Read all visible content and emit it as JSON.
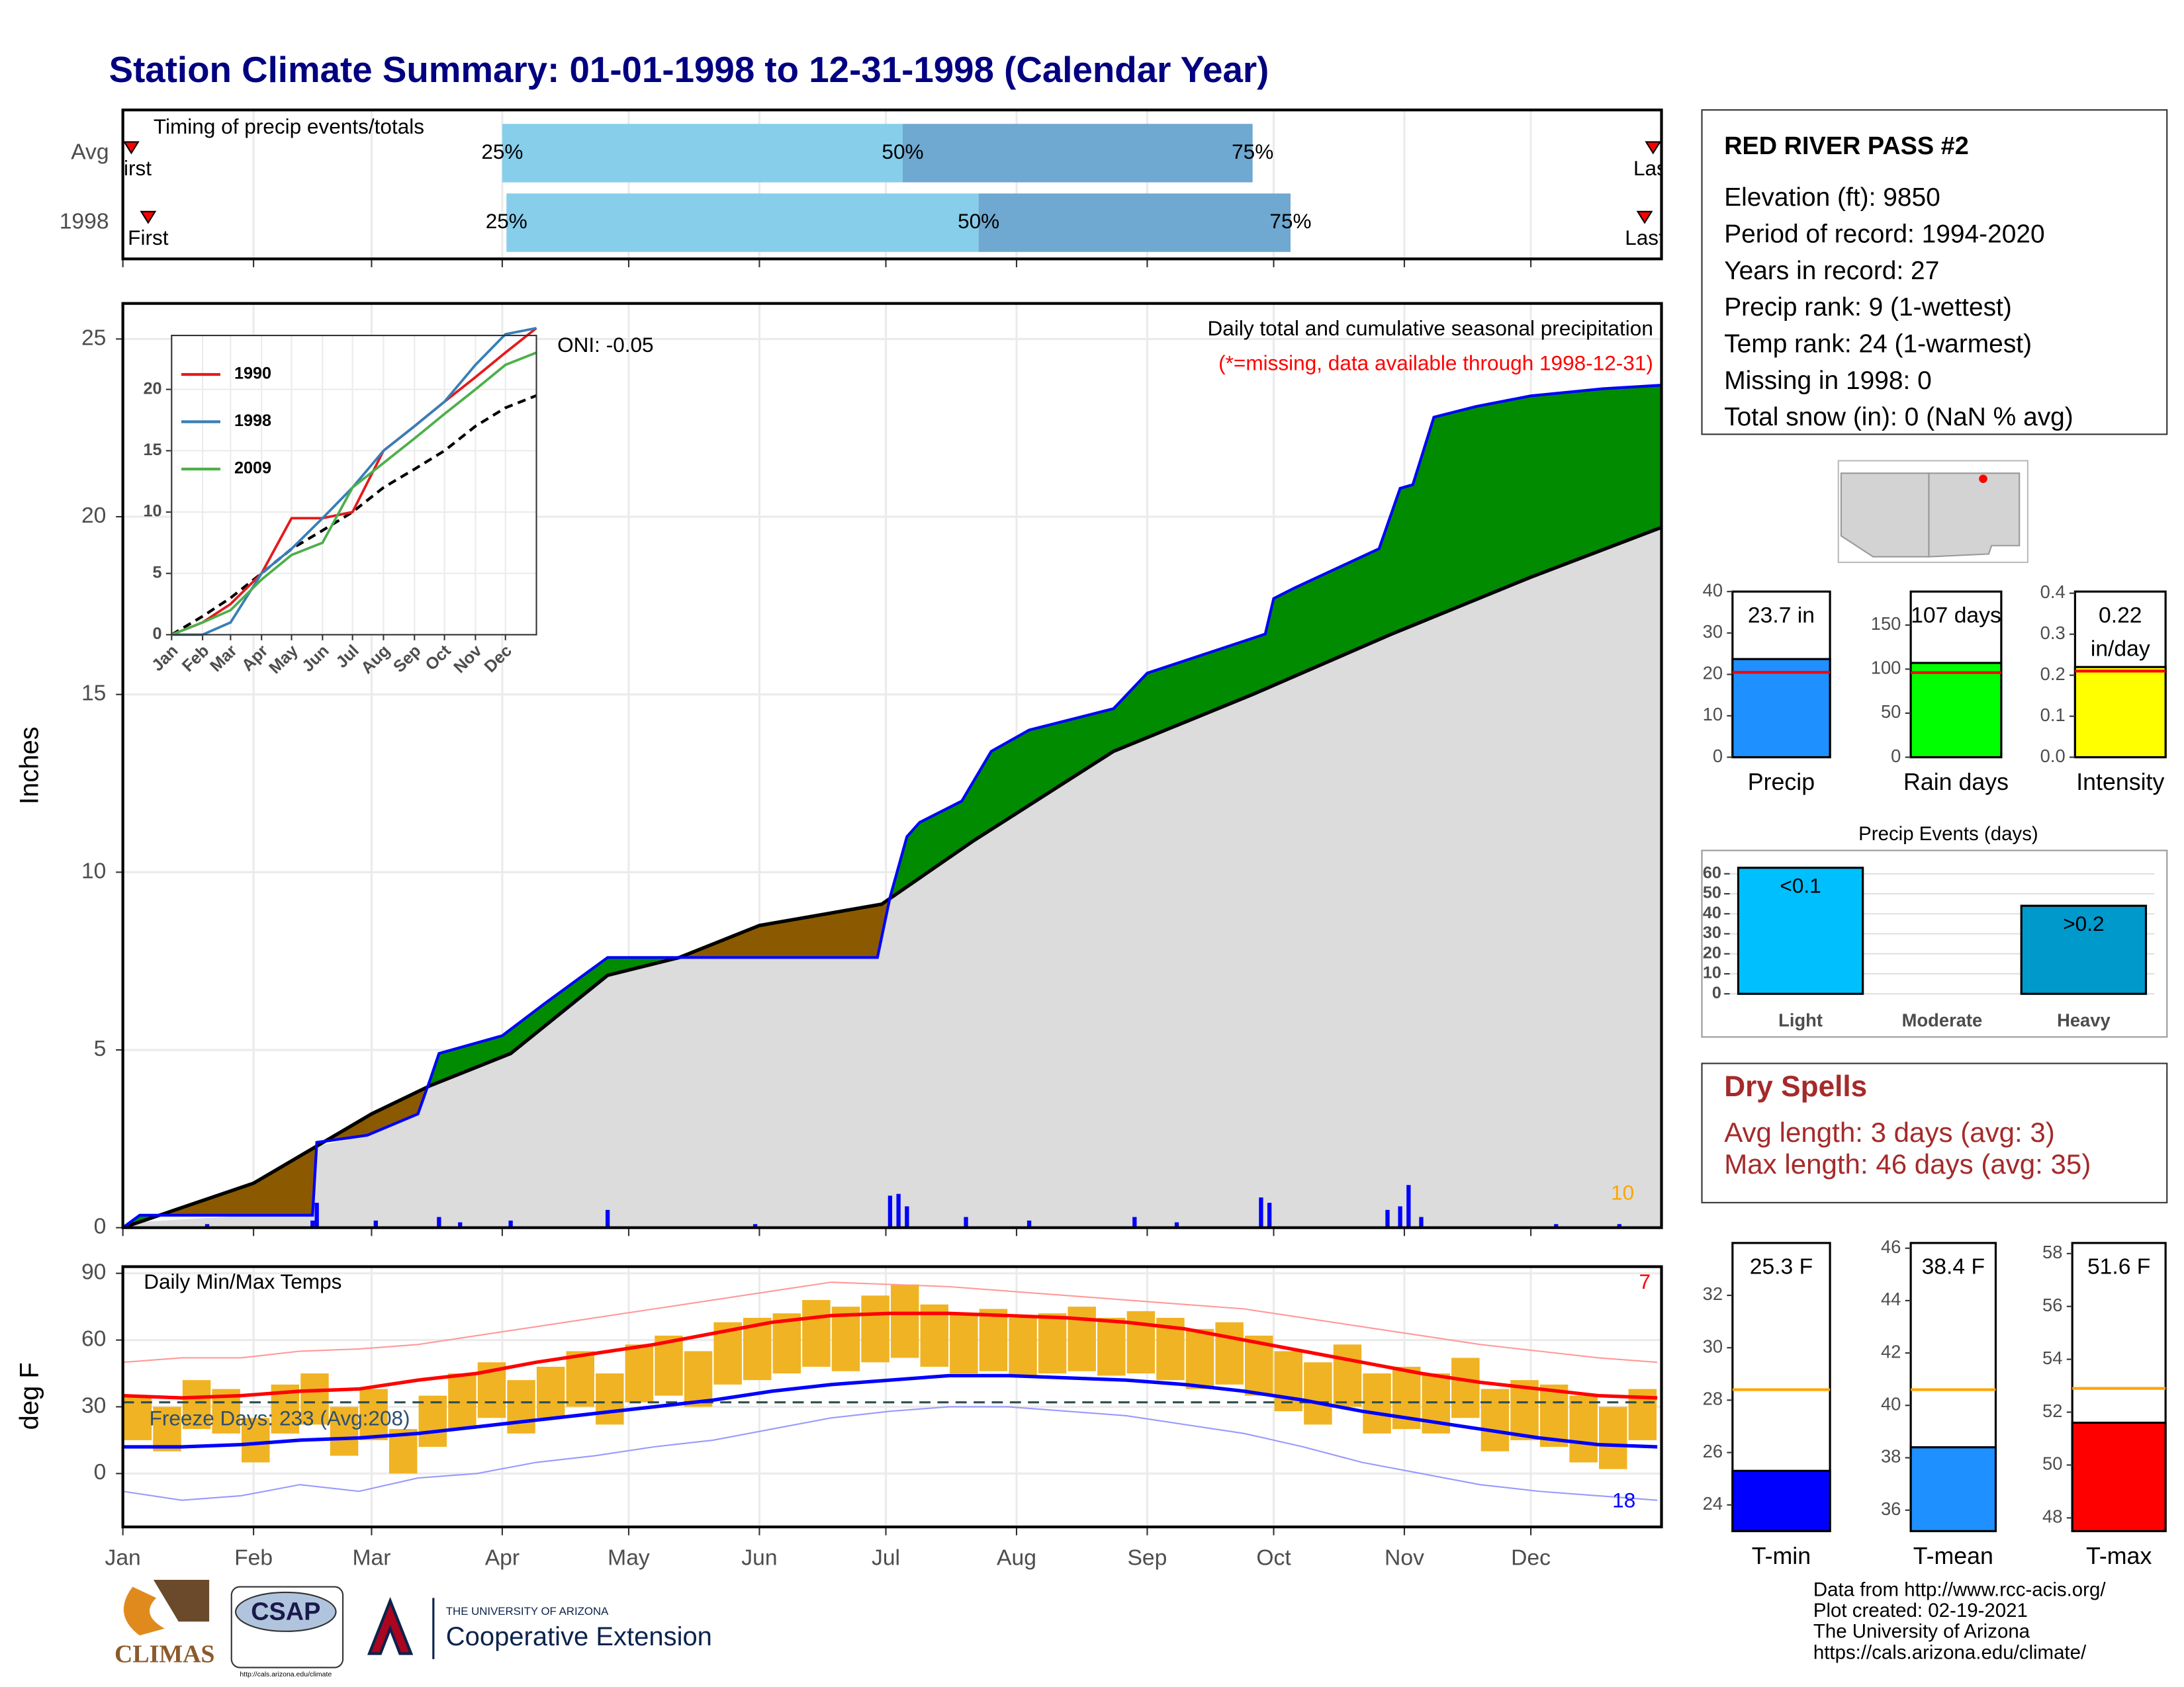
{
  "title": "Station Climate Summary: 01-01-1998 to 12-31-1998 (Calendar Year)",
  "chart_data": [
    {
      "type": "timing",
      "title": "Timing of precip events/totals",
      "categories": [
        "Avg",
        "1998"
      ],
      "first": [
        2,
        6
      ],
      "p25": [
        90,
        91
      ],
      "p50": [
        185,
        203
      ],
      "p75": [
        268,
        277
      ],
      "last": [
        363,
        361
      ],
      "labels": {
        "first": "First",
        "p25": "25%",
        "p50": "50%",
        "p75": "75%",
        "last": "Last"
      },
      "colors": [
        "#87ceeb",
        "#6fa8d0"
      ],
      "marker_color": "#ff0000",
      "xlim": [
        0,
        365
      ]
    },
    {
      "type": "cumulative",
      "title": "Daily total and cumulative seasonal precipitation",
      "subtitle": "(*=missing, data available through 1998-12-31)",
      "annotation": "ONI: -0.05",
      "count_label": "10",
      "y_label": "Inches",
      "xlim": [
        0,
        365
      ],
      "ylim": [
        0,
        26
      ],
      "yticks": [
        0,
        5,
        10,
        15,
        20,
        25
      ],
      "grid": true,
      "observed": {
        "color": "#0000ff",
        "x": [
          0,
          4,
          45,
          46,
          58,
          70,
          73,
          75,
          90,
          100,
          115,
          179,
          182,
          186,
          189,
          199,
          206,
          215,
          235,
          243,
          271,
          273,
          278,
          298,
          303,
          306,
          311,
          321,
          334,
          351,
          365
        ],
        "values": [
          0,
          0.35,
          0.35,
          2.4,
          2.6,
          3.2,
          4.2,
          4.9,
          5.4,
          6.3,
          7.6,
          7.6,
          9.3,
          11.0,
          11.4,
          12.0,
          13.4,
          14.0,
          14.6,
          15.6,
          16.7,
          17.7,
          18.0,
          19.1,
          20.8,
          20.9,
          22.8,
          23.1,
          23.4,
          23.6,
          23.7
        ]
      },
      "normal": {
        "color": "#000000",
        "x": [
          0,
          31,
          59,
          73,
          92,
          115,
          132,
          151,
          180,
          202,
          235,
          268,
          301,
          334,
          365
        ],
        "values": [
          0,
          1.25,
          3.2,
          4.0,
          4.9,
          7.1,
          7.6,
          8.5,
          9.1,
          10.9,
          13.4,
          15.0,
          16.7,
          18.3,
          19.7
        ]
      },
      "above_color": "#008b00",
      "below_color": "#8b5a00",
      "base_color": "#dcdcdc",
      "daily": {
        "color": "#0000ff",
        "x": [
          20,
          45,
          46,
          60,
          75,
          80,
          92,
          115,
          150,
          182,
          184,
          186,
          200,
          215,
          240,
          250,
          270,
          272,
          300,
          303,
          305,
          308,
          340,
          355
        ],
        "values": [
          0.1,
          0.2,
          0.7,
          0.2,
          0.3,
          0.15,
          0.2,
          0.5,
          0.1,
          0.9,
          0.95,
          0.6,
          0.3,
          0.2,
          0.3,
          0.15,
          0.85,
          0.7,
          0.5,
          0.6,
          1.2,
          0.3,
          0.1,
          0.1
        ]
      }
    },
    {
      "type": "line",
      "xlim": [
        0,
        365
      ],
      "ylim": [
        0,
        24.4
      ],
      "yticks": [
        0,
        5,
        10,
        15,
        20
      ],
      "xticks": [
        {
          "value": 0,
          "label": "Jan"
        },
        {
          "value": 31,
          "label": "Feb"
        },
        {
          "value": 59,
          "label": "Mar"
        },
        {
          "value": 90,
          "label": "Apr"
        },
        {
          "value": 120,
          "label": "May"
        },
        {
          "value": 151,
          "label": "Jun"
        },
        {
          "value": 181,
          "label": "Jul"
        },
        {
          "value": 212,
          "label": "Aug"
        },
        {
          "value": 243,
          "label": "Sep"
        },
        {
          "value": 273,
          "label": "Oct"
        },
        {
          "value": 304,
          "label": "Nov"
        },
        {
          "value": 334,
          "label": "Dec"
        }
      ],
      "x": [
        0,
        31,
        59,
        90,
        120,
        151,
        181,
        212,
        243,
        273,
        304,
        334,
        365
      ],
      "series": [
        {
          "name": "1990",
          "color": "#e41a1c",
          "values": [
            0,
            1,
            2.5,
            5,
            9.5,
            9.5,
            10,
            15,
            17,
            19,
            21,
            23,
            25
          ]
        },
        {
          "name": "1998",
          "color": "#377eb8",
          "values": [
            0,
            0,
            1,
            5,
            7,
            9.5,
            12,
            15,
            17,
            19,
            22,
            24.5,
            25
          ]
        },
        {
          "name": "2009",
          "color": "#4daf4a",
          "values": [
            0,
            1,
            2,
            4.5,
            6.5,
            7.5,
            12,
            14,
            16,
            18,
            20,
            22,
            23
          ]
        }
      ],
      "normal": {
        "color": "#000000",
        "values": [
          0,
          1.5,
          3,
          5,
          7,
          8.5,
          10,
          12,
          13.5,
          15,
          17,
          18.5,
          19.5
        ]
      }
    },
    {
      "type": "temps",
      "title": "Daily Min/Max Temps",
      "annotation": "Freeze Days: 233 (Avg:208)",
      "max_count_label": "7",
      "min_count_label": "18",
      "y_label": "deg F",
      "xlim": [
        0,
        365
      ],
      "ylim": [
        -24,
        93
      ],
      "yticks": [
        0,
        30,
        60,
        90
      ],
      "grid": true,
      "freeze_line": 32,
      "xticks": [
        {
          "value": 0,
          "label": "Jan"
        },
        {
          "value": 31,
          "label": "Feb"
        },
        {
          "value": 59,
          "label": "Mar"
        },
        {
          "value": 90,
          "label": "Apr"
        },
        {
          "value": 120,
          "label": "May"
        },
        {
          "value": 151,
          "label": "Jun"
        },
        {
          "value": 181,
          "label": "Jul"
        },
        {
          "value": 212,
          "label": "Aug"
        },
        {
          "value": 243,
          "label": "Sep"
        },
        {
          "value": 273,
          "label": "Oct"
        },
        {
          "value": 304,
          "label": "Nov"
        },
        {
          "value": 334,
          "label": "Dec"
        }
      ],
      "normal_x": [
        0,
        14,
        28,
        42,
        56,
        70,
        84,
        98,
        112,
        126,
        140,
        154,
        168,
        182,
        196,
        210,
        224,
        238,
        252,
        266,
        280,
        294,
        308,
        322,
        336,
        350,
        364
      ],
      "normal_max": [
        35,
        34,
        35,
        37,
        38,
        42,
        45,
        50,
        54,
        58,
        63,
        68,
        71,
        72,
        72,
        71,
        70,
        68,
        65,
        60,
        55,
        50,
        45,
        41,
        38,
        35,
        34
      ],
      "normal_min": [
        12,
        12,
        13,
        15,
        16,
        18,
        21,
        24,
        27,
        30,
        33,
        37,
        40,
        42,
        44,
        44,
        43,
        42,
        40,
        37,
        33,
        28,
        24,
        20,
        16,
        13,
        12
      ],
      "record_max": [
        50,
        52,
        52,
        55,
        56,
        58,
        62,
        66,
        70,
        74,
        78,
        82,
        86,
        85,
        84,
        82,
        80,
        78,
        76,
        74,
        70,
        66,
        62,
        58,
        55,
        52,
        50
      ],
      "record_min": [
        -8,
        -12,
        -10,
        -5,
        -8,
        -2,
        0,
        5,
        8,
        12,
        15,
        20,
        25,
        28,
        30,
        30,
        28,
        26,
        22,
        18,
        12,
        5,
        0,
        -5,
        -8,
        -10,
        -12
      ],
      "x": [
        0,
        7,
        14,
        21,
        28,
        35,
        42,
        49,
        56,
        63,
        70,
        77,
        84,
        91,
        98,
        105,
        112,
        119,
        126,
        133,
        140,
        147,
        154,
        161,
        168,
        175,
        182,
        189,
        196,
        203,
        210,
        217,
        224,
        231,
        238,
        245,
        252,
        259,
        266,
        273,
        280,
        287,
        294,
        301,
        308,
        315,
        322,
        329,
        336,
        343,
        350,
        357
      ],
      "max": [
        35,
        30,
        42,
        38,
        25,
        40,
        45,
        30,
        38,
        20,
        35,
        45,
        50,
        42,
        48,
        55,
        45,
        58,
        62,
        55,
        68,
        70,
        72,
        78,
        75,
        80,
        85,
        76,
        72,
        74,
        70,
        72,
        75,
        70,
        73,
        70,
        65,
        68,
        62,
        55,
        50,
        58,
        45,
        48,
        45,
        52,
        38,
        42,
        40,
        35,
        30,
        38
      ],
      "min": [
        15,
        10,
        20,
        18,
        5,
        18,
        22,
        8,
        15,
        0,
        12,
        20,
        25,
        18,
        25,
        30,
        22,
        32,
        35,
        30,
        40,
        42,
        45,
        48,
        46,
        50,
        52,
        48,
        45,
        46,
        44,
        45,
        46,
        44,
        45,
        42,
        38,
        40,
        35,
        28,
        22,
        30,
        18,
        20,
        18,
        25,
        10,
        15,
        12,
        5,
        2,
        15
      ],
      "bar_color": "#f0b323",
      "normal_max_color": "#ff0000",
      "normal_min_color": "#0000ff",
      "record_max_color": "#ff9999",
      "record_min_color": "#9999ff",
      "freeze_color": "#2f4f4f"
    },
    {
      "type": "summary-bar",
      "category": "Precip",
      "value": 23.7,
      "value_labels": [
        "23.7 in"
      ],
      "average": 20.5,
      "ylim": [
        0,
        40
      ],
      "yticks": [
        0,
        10,
        20,
        30,
        40
      ],
      "color": "#1e90ff",
      "avg_color": "#ff0000"
    },
    {
      "type": "summary-bar",
      "category": "Rain days",
      "value": 107,
      "value_labels": [
        "107 days"
      ],
      "average": 96,
      "ylim": [
        0,
        188
      ],
      "yticks": [
        0,
        50,
        100,
        150
      ],
      "color": "#00ff00",
      "avg_color": "#ff0000"
    },
    {
      "type": "summary-bar",
      "category": "Intensity",
      "value": 0.22,
      "value_labels": [
        "0.22",
        "in/day"
      ],
      "average": 0.21,
      "ylim": [
        0,
        0.404
      ],
      "yticks": [
        {
          "value": 0,
          "label": "0.0"
        },
        {
          "value": 0.1,
          "label": "0.1"
        },
        {
          "value": 0.2,
          "label": "0.2"
        },
        {
          "value": 0.3,
          "label": "0.3"
        },
        {
          "value": 0.4,
          "label": "0.4"
        }
      ],
      "color": "#ffff00",
      "avg_color": "#ff0000"
    },
    {
      "type": "bar",
      "title": "Precip Events (days)",
      "categories": [
        "Light",
        "Moderate",
        "Heavy"
      ],
      "values": [
        63,
        0,
        44
      ],
      "bar_labels": [
        "<0.1",
        null,
        ">0.2"
      ],
      "colors": [
        "#00bfff",
        "#1e90ff",
        "#0099cc"
      ],
      "ylim": [
        0,
        64
      ],
      "yticks": [
        0,
        10,
        20,
        30,
        40,
        50,
        60
      ],
      "grid": true
    },
    {
      "type": "summary-bar",
      "category": "T-min",
      "value": 25.3,
      "value_labels": [
        "25.3 F"
      ],
      "average": 28.4,
      "ylim": [
        23.0,
        34.0
      ],
      "yticks": [
        24,
        26,
        28,
        30,
        32
      ],
      "color": "#0000ff",
      "avg_color": "#ffa500"
    },
    {
      "type": "summary-bar",
      "category": "T-mean",
      "value": 38.4,
      "value_labels": [
        "38.4 F"
      ],
      "average": 40.6,
      "ylim": [
        35.2,
        46.2
      ],
      "yticks": [
        36,
        38,
        40,
        42,
        44,
        46
      ],
      "color": "#1e90ff",
      "avg_color": "#ffa500"
    },
    {
      "type": "summary-bar",
      "category": "T-max",
      "value": 51.6,
      "value_labels": [
        "51.6 F"
      ],
      "average": 52.9,
      "ylim": [
        47.5,
        58.4
      ],
      "yticks": [
        48,
        50,
        52,
        54,
        56,
        58
      ],
      "color": "#ff0000",
      "avg_color": "#ffa500"
    }
  ],
  "station": {
    "name": "RED RIVER PASS #2",
    "lines": [
      "Elevation (ft): 9850",
      "Period of record: 1994-2020",
      "Years in record: 27",
      "Precip rank: 9 (1-wettest)",
      "Temp rank: 24 (1-warmest)",
      "Missing in 1998: 0",
      "Total snow (in): 0 (NaN % avg)"
    ]
  },
  "dry_spells": {
    "title": "Dry Spells",
    "lines": [
      "Avg length: 3 days (avg: 3)",
      "Max length: 46 days (avg: 35)"
    ]
  },
  "footer": [
    "Data from http://www.rcc-acis.org/",
    "Plot created: 02-19-2021",
    "The University of Arizona",
    "https://cals.arizona.edu/climate/"
  ],
  "logos": {
    "climas": "CLIMAS",
    "csap": "CSAP",
    "csap_url": "http://cals.arizona.edu/climate",
    "ua": "THE UNIVERSITY OF ARIZONA",
    "extension": "Cooperative Extension"
  }
}
